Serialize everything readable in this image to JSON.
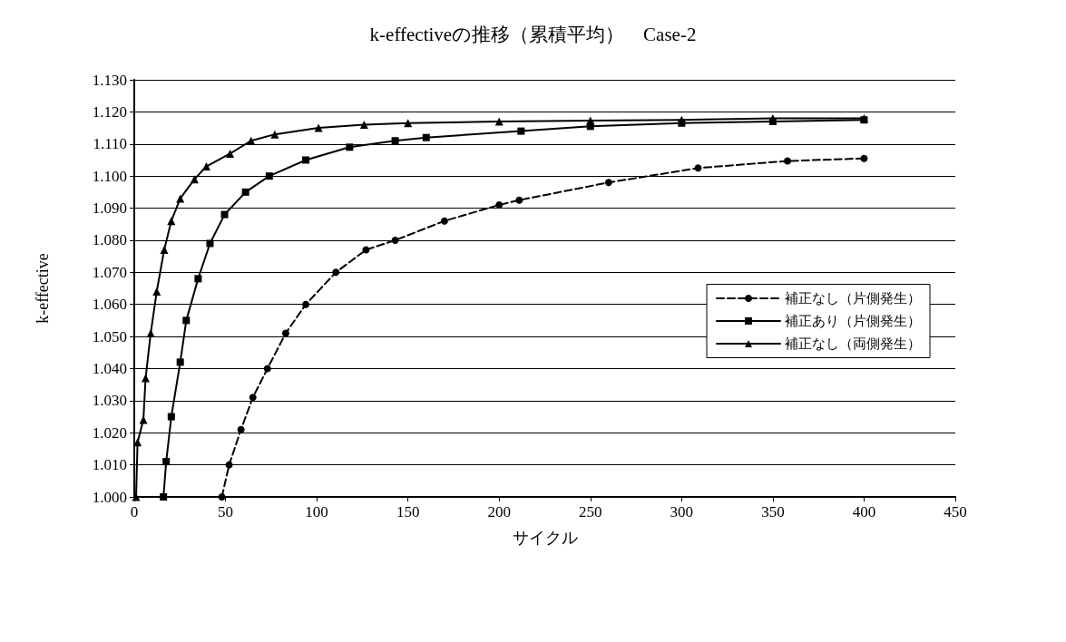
{
  "chart_data": {
    "type": "line",
    "title": "k-effectiveの推移（累積平均）　Case-2",
    "xlabel": "サイクル",
    "ylabel": "k-effective",
    "xlim": [
      0,
      450
    ],
    "xticks": [
      0,
      50,
      100,
      150,
      200,
      250,
      300,
      350,
      400,
      450
    ],
    "ylim": [
      1.0,
      1.13
    ],
    "yticks": [
      {
        "value": 1.0,
        "label": "1.000"
      },
      {
        "value": 1.01,
        "label": "1.010"
      },
      {
        "value": 1.02,
        "label": "1.020"
      },
      {
        "value": 1.03,
        "label": "1.030"
      },
      {
        "value": 1.04,
        "label": "1.040"
      },
      {
        "value": 1.05,
        "label": "1.050"
      },
      {
        "value": 1.06,
        "label": "1.060"
      },
      {
        "value": 1.07,
        "label": "1.070"
      },
      {
        "value": 1.08,
        "label": "1.080"
      },
      {
        "value": 1.09,
        "label": "1.090"
      },
      {
        "value": 1.1,
        "label": "1.100"
      },
      {
        "value": 1.11,
        "label": "1.110"
      },
      {
        "value": 1.12,
        "label": "1.120"
      },
      {
        "value": 1.13,
        "label": "1.130"
      }
    ],
    "grid": "y",
    "legend": "right",
    "series": [
      {
        "name": "補正なし（片側発生）",
        "color": "#000000",
        "marker": "circle",
        "line_style": "dashed",
        "x": [
          48,
          52,
          58.5,
          65,
          73,
          83,
          94,
          110.5,
          127,
          143,
          170,
          200,
          211,
          260,
          309,
          358,
          400
        ],
        "values": [
          1.0,
          1.01,
          1.021,
          1.031,
          1.04,
          1.051,
          1.06,
          1.07,
          1.077,
          1.08,
          1.086,
          1.091,
          1.0925,
          1.098,
          1.1025,
          1.1047,
          1.1055
        ]
      },
      {
        "name": "補正あり（片側発生）",
        "color": "#000000",
        "marker": "square",
        "line_style": "solid",
        "x": [
          16,
          17.5,
          20.3,
          25.2,
          28.5,
          35,
          41.5,
          49.5,
          61,
          74,
          94,
          118,
          143,
          160,
          212,
          250,
          300,
          350,
          400
        ],
        "values": [
          1.0,
          1.011,
          1.025,
          1.042,
          1.055,
          1.068,
          1.079,
          1.088,
          1.095,
          1.1,
          1.105,
          1.109,
          1.111,
          1.112,
          1.114,
          1.1155,
          1.1165,
          1.117,
          1.1175
        ]
      },
      {
        "name": "補正なし（両側発生）",
        "color": "#000000",
        "marker": "triangle",
        "line_style": "solid",
        "x": [
          1,
          1.8,
          5,
          6.2,
          9,
          12.3,
          16.4,
          20.3,
          25.2,
          33,
          39.5,
          52.5,
          64,
          77,
          101,
          126,
          150,
          200,
          250,
          300,
          350,
          400
        ],
        "values": [
          1.0,
          1.017,
          1.024,
          1.037,
          1.051,
          1.064,
          1.077,
          1.086,
          1.093,
          1.099,
          1.103,
          1.107,
          1.111,
          1.113,
          1.115,
          1.116,
          1.1165,
          1.117,
          1.1173,
          1.1175,
          1.118,
          1.118
        ]
      }
    ]
  }
}
